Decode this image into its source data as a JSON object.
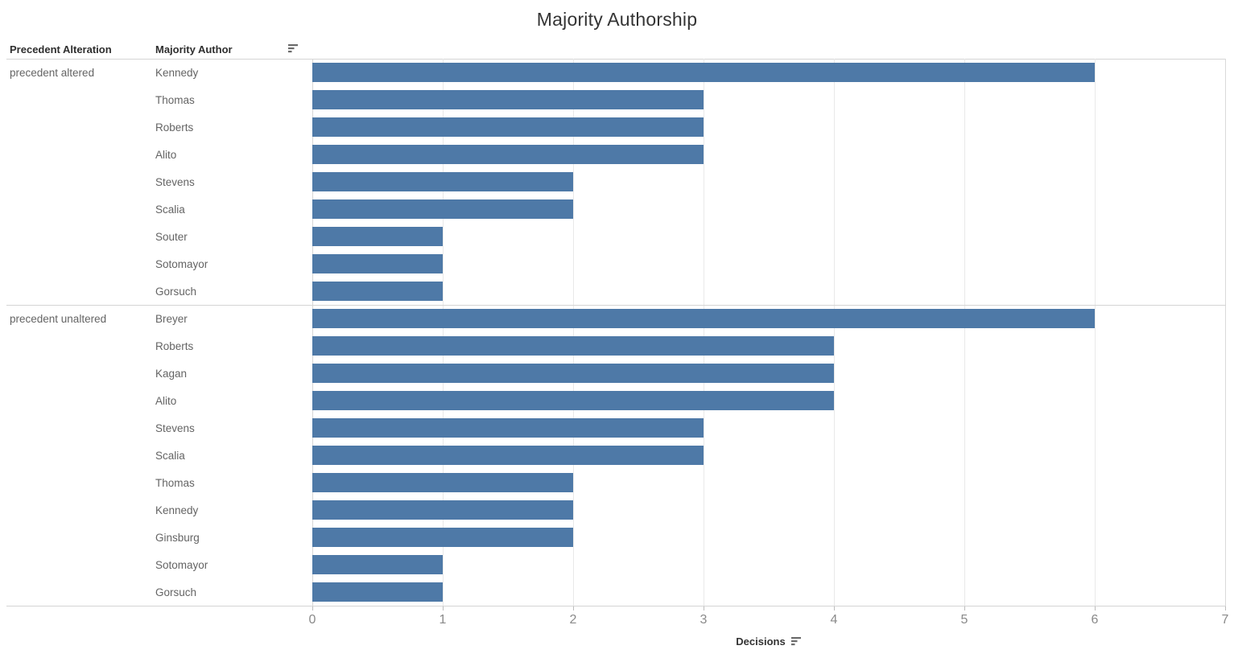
{
  "title": "Majority Authorship",
  "columns": {
    "precedent": "Precedent Alteration",
    "author": "Majority Author"
  },
  "axis": {
    "label": "Decisions"
  },
  "icons": {
    "header_sort": "sort-descending-icon",
    "axis_sort": "sort-descending-icon"
  },
  "colors": {
    "bar": "#4e79a7",
    "gridline": "#e9e9e9",
    "divider": "#d4d4d4",
    "tick_label": "#8a8a8a"
  },
  "chart_data": {
    "type": "bar",
    "orientation": "horizontal",
    "title": "Majority Authorship",
    "xlabel": "Decisions",
    "ylabel": "Precedent Alteration / Majority Author",
    "xlim": [
      0,
      7
    ],
    "x_ticks": [
      0,
      1,
      2,
      3,
      4,
      5,
      6,
      7
    ],
    "grid": "vertical",
    "groups": [
      {
        "label": "precedent altered",
        "rows": [
          {
            "author": "Kennedy",
            "value": 6
          },
          {
            "author": "Thomas",
            "value": 3
          },
          {
            "author": "Roberts",
            "value": 3
          },
          {
            "author": "Alito",
            "value": 3
          },
          {
            "author": "Stevens",
            "value": 2
          },
          {
            "author": "Scalia",
            "value": 2
          },
          {
            "author": "Souter",
            "value": 1
          },
          {
            "author": "Sotomayor",
            "value": 1
          },
          {
            "author": "Gorsuch",
            "value": 1
          }
        ]
      },
      {
        "label": "precedent unaltered",
        "rows": [
          {
            "author": "Breyer",
            "value": 6
          },
          {
            "author": "Roberts",
            "value": 4
          },
          {
            "author": "Kagan",
            "value": 4
          },
          {
            "author": "Alito",
            "value": 4
          },
          {
            "author": "Stevens",
            "value": 3
          },
          {
            "author": "Scalia",
            "value": 3
          },
          {
            "author": "Thomas",
            "value": 2
          },
          {
            "author": "Kennedy",
            "value": 2
          },
          {
            "author": "Ginsburg",
            "value": 2
          },
          {
            "author": "Sotomayor",
            "value": 1
          },
          {
            "author": "Gorsuch",
            "value": 1
          }
        ]
      }
    ]
  }
}
